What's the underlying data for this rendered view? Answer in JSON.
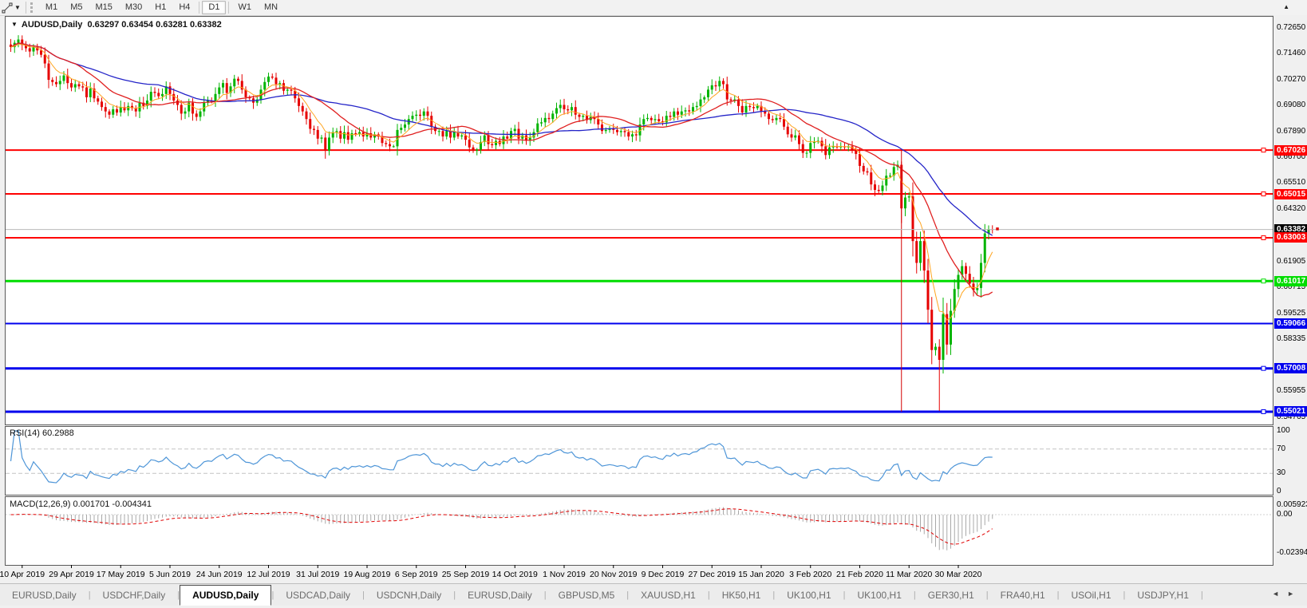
{
  "toolbar": {
    "cursor_tool": "line-study-cursor",
    "timeframes": [
      "M1",
      "M5",
      "M15",
      "M30",
      "H1",
      "H4",
      "D1",
      "W1",
      "MN"
    ],
    "active_timeframe": "D1"
  },
  "chart": {
    "symbol": "AUDUSD,Daily",
    "ohlc": {
      "open": "0.63297",
      "high": "0.63454",
      "low": "0.63281",
      "close": "0.63382"
    },
    "price_axis_ticks": [
      "0.72650",
      "0.71460",
      "0.70270",
      "0.69080",
      "0.67890",
      "0.66700",
      "0.65510",
      "0.64320",
      "0.61905",
      "0.60715",
      "0.59525",
      "0.58335",
      "0.55955",
      "0.54765"
    ],
    "current_price": {
      "label": "0.63382",
      "value": 0.63382,
      "line_color": "#b9b9b9",
      "box_color": "#000000"
    },
    "date_axis_labels": [
      "10 Apr 2019",
      "29 Apr 2019",
      "17 May 2019",
      "5 Jun 2019",
      "24 Jun 2019",
      "12 Jul 2019",
      "31 Jul 2019",
      "19 Aug 2019",
      "6 Sep 2019",
      "25 Sep 2019",
      "14 Oct 2019",
      "1 Nov 2019",
      "20 Nov 2019",
      "9 Dec 2019",
      "27 Dec 2019",
      "15 Jan 2020",
      "3 Feb 2020",
      "21 Feb 2020",
      "11 Mar 2020",
      "30 Mar 2020"
    ]
  },
  "rsi": {
    "label": "RSI(14) 60.2988",
    "period": 14,
    "axis_labels": [
      {
        "text": "100",
        "v": 100
      },
      {
        "text": "70",
        "v": 70
      },
      {
        "text": "30",
        "v": 30
      },
      {
        "text": "0",
        "v": 0
      }
    ],
    "dashed_levels": [
      70,
      30
    ],
    "line_color": "#4f96d8"
  },
  "macd": {
    "label": "MACD(12,26,9) 0.001701 -0.004341",
    "fast": 12,
    "slow": 26,
    "signal": 9,
    "axis_labels": [
      {
        "text": "0.005923",
        "v": 0.005923
      },
      {
        "text": "0.00",
        "v": 0
      },
      {
        "text": "-0.02394",
        "v": -0.02394
      }
    ],
    "histogram_color": "#a8a8a8",
    "signal_color": "#e00000"
  },
  "tabs": [
    {
      "label": "EURUSD,Daily",
      "active": false
    },
    {
      "label": "USDCHF,Daily",
      "active": false
    },
    {
      "label": "AUDUSD,Daily",
      "active": true
    },
    {
      "label": "USDCAD,Daily",
      "active": false
    },
    {
      "label": "USDCNH,Daily",
      "active": false
    },
    {
      "label": "EURUSD,Daily",
      "active": false
    },
    {
      "label": "GBPUSD,M5",
      "active": false
    },
    {
      "label": "XAUUSD,H1",
      "active": false
    },
    {
      "label": "HK50,H1",
      "active": false
    },
    {
      "label": "UK100,H1",
      "active": false
    },
    {
      "label": "UK100,H1",
      "active": false
    },
    {
      "label": "GER30,H1",
      "active": false
    },
    {
      "label": "FRA40,H1",
      "active": false
    },
    {
      "label": "USOil,H1",
      "active": false
    },
    {
      "label": "USDJPY,H1",
      "active": false
    }
  ],
  "chart_data": {
    "type": "candlestick",
    "symbol": "AUDUSD",
    "timeframe": "Daily",
    "bull_color": "#00b400",
    "bear_color": "#e60000",
    "closes": [
      0.7175,
      0.7195,
      0.721,
      0.7185,
      0.717,
      0.7155,
      0.7175,
      0.716,
      0.714,
      0.71,
      0.7025,
      0.7015,
      0.7005,
      0.702,
      0.7045,
      0.701,
      0.699,
      0.7005,
      0.6995,
      0.699,
      0.6945,
      0.6985,
      0.694,
      0.6925,
      0.69,
      0.688,
      0.6865,
      0.689,
      0.6875,
      0.69,
      0.6885,
      0.6905,
      0.6895,
      0.688,
      0.692,
      0.6905,
      0.693,
      0.697,
      0.6965,
      0.695,
      0.696,
      0.6995,
      0.696,
      0.693,
      0.691,
      0.687,
      0.688,
      0.692,
      0.687,
      0.6855,
      0.688,
      0.692,
      0.693,
      0.6925,
      0.696,
      0.699,
      0.701,
      0.6965,
      0.6995,
      0.703,
      0.702,
      0.698,
      0.6945,
      0.694,
      0.692,
      0.6935,
      0.698,
      0.7015,
      0.704,
      0.7035,
      0.7005,
      0.701,
      0.6975,
      0.698,
      0.6975,
      0.694,
      0.6905,
      0.688,
      0.6845,
      0.68,
      0.6795,
      0.6755,
      0.676,
      0.67,
      0.676,
      0.6785,
      0.679,
      0.6755,
      0.6785,
      0.675,
      0.678,
      0.6775,
      0.6785,
      0.6765,
      0.678,
      0.676,
      0.6775,
      0.6765,
      0.6735,
      0.673,
      0.672,
      0.672,
      0.6795,
      0.6805,
      0.682,
      0.6845,
      0.686,
      0.6865,
      0.686,
      0.688,
      0.686,
      0.681,
      0.679,
      0.679,
      0.6765,
      0.679,
      0.676,
      0.6785,
      0.6765,
      0.677,
      0.675,
      0.6715,
      0.67,
      0.6705,
      0.674,
      0.677,
      0.673,
      0.6725,
      0.6745,
      0.673,
      0.6765,
      0.6755,
      0.679,
      0.68,
      0.6755,
      0.677,
      0.6745,
      0.676,
      0.6785,
      0.6825,
      0.683,
      0.685,
      0.6845,
      0.687,
      0.6895,
      0.691,
      0.689,
      0.6885,
      0.69,
      0.6865,
      0.6855,
      0.686,
      0.684,
      0.6855,
      0.6845,
      0.682,
      0.679,
      0.6795,
      0.68,
      0.6795,
      0.6785,
      0.679,
      0.6785,
      0.6765,
      0.6775,
      0.677,
      0.682,
      0.6845,
      0.685,
      0.684,
      0.6845,
      0.6835,
      0.683,
      0.686,
      0.6855,
      0.688,
      0.6865,
      0.688,
      0.6885,
      0.688,
      0.69,
      0.6905,
      0.6935,
      0.6945,
      0.698,
      0.7,
      0.6995,
      0.702,
      0.7005,
      0.6935,
      0.693,
      0.6935,
      0.6905,
      0.6875,
      0.6905,
      0.69,
      0.6895,
      0.6905,
      0.688,
      0.687,
      0.6845,
      0.684,
      0.685,
      0.6845,
      0.681,
      0.6775,
      0.676,
      0.677,
      0.673,
      0.669,
      0.669,
      0.6735,
      0.674,
      0.6745,
      0.672,
      0.668,
      0.6715,
      0.672,
      0.6715,
      0.672,
      0.6715,
      0.672,
      0.67,
      0.6685,
      0.663,
      0.6605,
      0.66,
      0.6545,
      0.652,
      0.6515,
      0.654,
      0.6585,
      0.6585,
      0.6625,
      0.6635,
      0.6435,
      0.6485,
      0.649,
      0.6285,
      0.6185,
      0.6285,
      0.615,
      0.597,
      0.5785,
      0.58,
      0.574,
      0.595,
      0.581,
      0.5965,
      0.6065,
      0.613,
      0.617,
      0.6135,
      0.609,
      0.606,
      0.607,
      0.6185,
      0.632,
      0.634,
      0.63382
    ],
    "wick_overrides": {
      "235": {
        "high": 0.665
      },
      "245": {
        "low": 0.5506
      }
    },
    "moving_averages": [
      {
        "type": "sma",
        "period": 40,
        "color": "#2424c8"
      },
      {
        "type": "sma",
        "period": 18,
        "color": "#e02020"
      },
      {
        "type": "ema",
        "period": 7,
        "color": "#ffa520"
      }
    ],
    "hlines": [
      {
        "price": 0.67026,
        "label": "0.67026",
        "color": "#ff0000",
        "thickness": 2,
        "handle": true
      },
      {
        "price": 0.65015,
        "label": "0.65015",
        "color": "#ff0000",
        "thickness": 2,
        "handle": true
      },
      {
        "price": 0.63003,
        "label": "0.63003",
        "color": "#ff0000",
        "thickness": 2,
        "handle": true
      },
      {
        "price": 0.61017,
        "label": "0.61017",
        "color": "#00dd00",
        "thickness": 3,
        "handle": true
      },
      {
        "price": 0.59066,
        "label": "0.59066",
        "color": "#0000ee",
        "thickness": 2,
        "handle": false
      },
      {
        "price": 0.57008,
        "label": "0.57008",
        "color": "#0000ee",
        "thickness": 3,
        "handle": true
      },
      {
        "price": 0.55021,
        "label": "0.55021",
        "color": "#0000ee",
        "thickness": 3,
        "handle": true
      }
    ],
    "vline": {
      "bar_index": 235,
      "from_price": 0.67026,
      "to_price": 0.55021,
      "color": "#d40000"
    }
  }
}
